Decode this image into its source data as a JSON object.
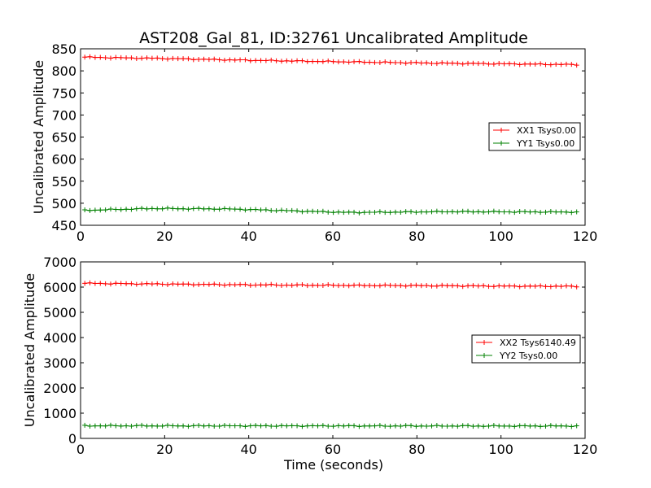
{
  "figure": {
    "title": "AST208_Gal_81, ID:32761 Uncalibrated Amplitude",
    "xlabel": "Time (seconds)"
  },
  "chart_data": [
    {
      "type": "line",
      "ylabel": "Uncalibrated Amplitude",
      "xlim": [
        0,
        120
      ],
      "ylim": [
        450,
        850
      ],
      "xticks": [
        0,
        20,
        40,
        60,
        80,
        100,
        120
      ],
      "yticks": [
        450,
        500,
        550,
        600,
        650,
        700,
        750,
        800,
        850
      ],
      "grid": false,
      "legend": "center-right",
      "x_range": [
        1,
        118
      ],
      "sample_count": 96,
      "marker": "+",
      "series": [
        {
          "name": "XX1 Tsys0.00",
          "color": "#ff0000",
          "x": [
            1,
            20,
            40,
            60,
            80,
            100,
            118
          ],
          "values": [
            831,
            828,
            824,
            821,
            818,
            816,
            814
          ]
        },
        {
          "name": "YY1 Tsys0.00",
          "color": "#008000",
          "x": [
            1,
            17,
            35,
            64,
            88,
            118
          ],
          "values": [
            484,
            488,
            487,
            479,
            481,
            480
          ]
        }
      ]
    },
    {
      "type": "line",
      "ylabel": "Uncalibrated Amplitude",
      "xlabel": "Time (seconds)",
      "xlim": [
        0,
        120
      ],
      "ylim": [
        0,
        7000
      ],
      "xticks": [
        0,
        20,
        40,
        60,
        80,
        100,
        120
      ],
      "yticks": [
        0,
        1000,
        2000,
        3000,
        4000,
        5000,
        6000,
        7000
      ],
      "grid": false,
      "legend": "center-right",
      "x_range": [
        1,
        118
      ],
      "sample_count": 96,
      "marker": "+",
      "series": [
        {
          "name": "XX2 Tsys6140.49",
          "color": "#ff0000",
          "x": [
            1,
            20,
            40,
            60,
            80,
            100,
            118
          ],
          "values": [
            6150,
            6120,
            6090,
            6070,
            6060,
            6040,
            6030
          ]
        },
        {
          "name": "YY2 Tsys0.00",
          "color": "#008000",
          "x": [
            1,
            60,
            118
          ],
          "values": [
            500,
            495,
            490
          ]
        }
      ]
    }
  ]
}
